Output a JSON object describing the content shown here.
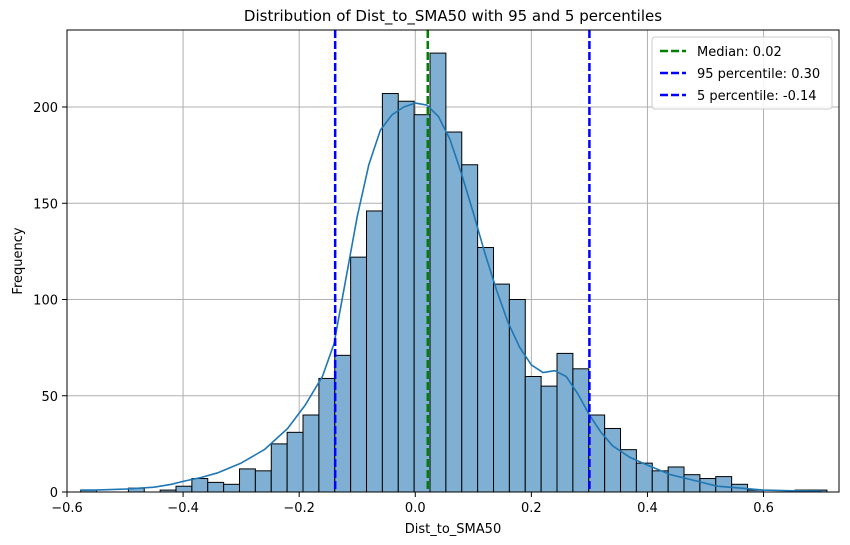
{
  "chart_data": {
    "type": "histogram",
    "title": "Distribution of Dist_to_SMA50 with 95 and 5 percentiles",
    "xlabel": "Dist_to_SMA50",
    "ylabel": "Frequency",
    "xlim": [
      -0.6,
      0.73
    ],
    "ylim": [
      0,
      240
    ],
    "xticks": [
      -0.6,
      -0.4,
      -0.2,
      0.0,
      0.2,
      0.4,
      0.6
    ],
    "xtick_labels": [
      "−0.6",
      "−0.4",
      "−0.2",
      "0.0",
      "0.2",
      "0.4",
      "0.6"
    ],
    "yticks": [
      0,
      50,
      100,
      150,
      200
    ],
    "ytick_labels": [
      "0",
      "50",
      "100",
      "150",
      "200"
    ],
    "grid": true,
    "bins": {
      "start": -0.5763,
      "width": 0.02735,
      "counts": [
        1,
        0,
        0,
        2,
        0,
        1,
        3,
        7,
        5,
        4,
        12,
        11,
        25,
        31,
        40,
        59,
        71,
        122,
        146,
        207,
        203,
        196,
        228,
        187,
        170,
        127,
        108,
        100,
        60,
        55,
        72,
        64,
        40,
        33,
        22,
        15,
        11,
        13,
        9,
        7,
        8,
        4,
        1,
        0,
        0,
        1,
        1
      ]
    },
    "kde": {
      "x": [
        -0.576,
        -0.55,
        -0.5,
        -0.45,
        -0.42,
        -0.4,
        -0.37,
        -0.34,
        -0.3,
        -0.26,
        -0.22,
        -0.19,
        -0.16,
        -0.14,
        -0.12,
        -0.1,
        -0.08,
        -0.06,
        -0.04,
        -0.02,
        0.0,
        0.02,
        0.04,
        0.06,
        0.08,
        0.1,
        0.12,
        0.14,
        0.16,
        0.18,
        0.2,
        0.22,
        0.24,
        0.26,
        0.28,
        0.3,
        0.32,
        0.34,
        0.37,
        0.4,
        0.44,
        0.48,
        0.52,
        0.56,
        0.6,
        0.65,
        0.7
      ],
      "y": [
        1,
        1,
        1.5,
        2.5,
        4,
        5.5,
        7.5,
        10,
        15,
        22,
        33,
        45,
        60,
        77,
        110,
        143,
        170,
        188,
        196,
        200,
        202,
        201,
        195,
        183,
        165,
        145,
        124,
        105,
        88,
        75,
        66,
        62,
        63,
        60,
        51,
        40,
        31,
        24,
        18,
        14,
        9,
        6,
        3,
        2,
        1,
        0.6,
        0.5
      ]
    },
    "vlines": [
      {
        "label": "Median: 0.02",
        "x": 0.0215,
        "color": "#008000"
      },
      {
        "label": "95 percentile: 0.30",
        "x": 0.3,
        "color": "#0000ff"
      },
      {
        "label": "5 percentile: -0.14",
        "x": -0.138,
        "color": "#0000ff"
      }
    ],
    "colors": {
      "bar_fill": "#7fafd2",
      "bar_edge": "#000000",
      "kde_line": "#1f77b4",
      "grid": "#b0b0b0"
    },
    "legend_position": "top-right"
  }
}
